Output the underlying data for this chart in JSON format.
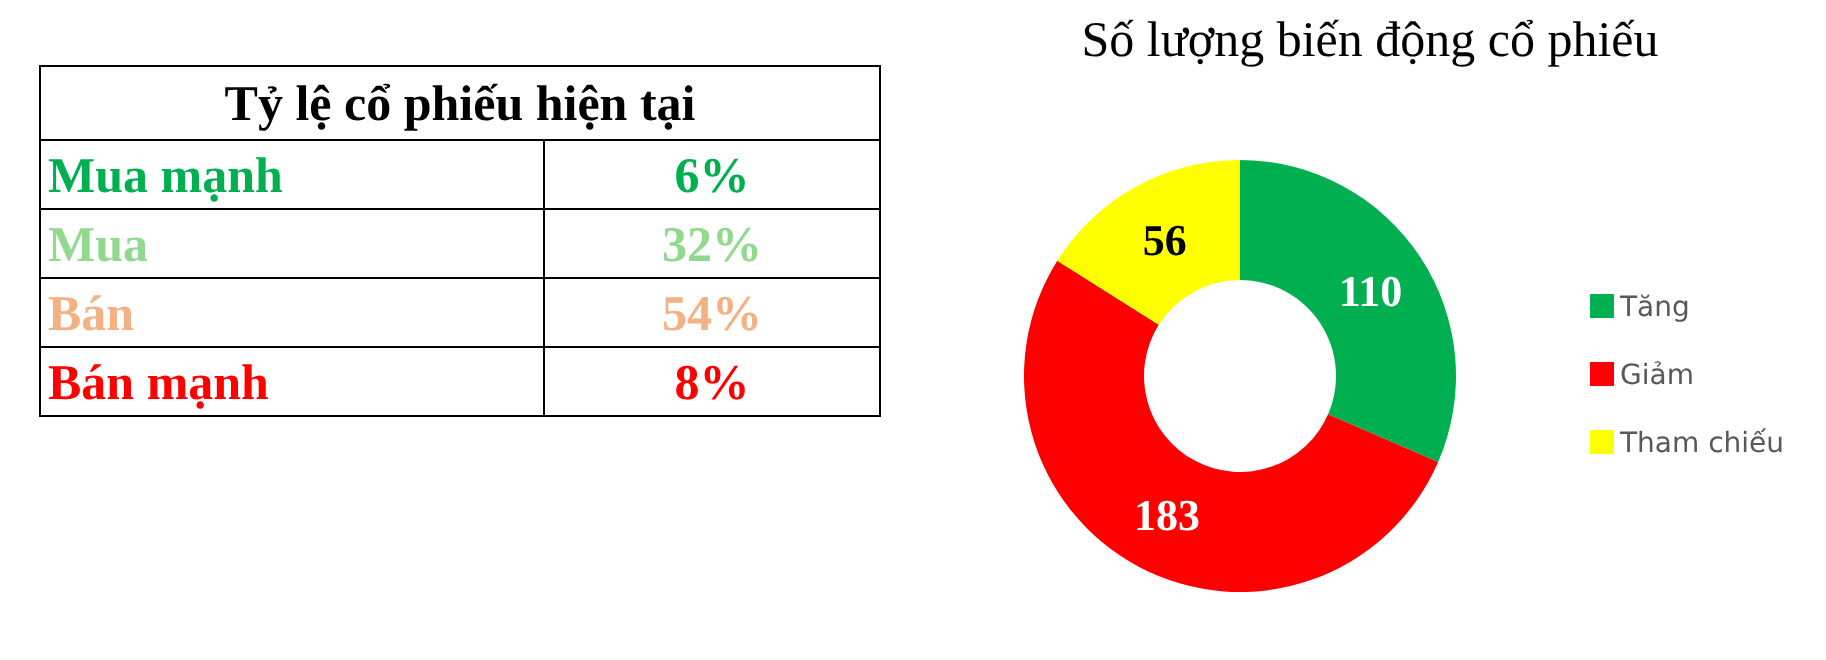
{
  "chart_data": [
    {
      "type": "other",
      "title": "Tỷ lệ cổ phiếu hiện tại",
      "categories": [
        "Mua mạnh",
        "Mua",
        "Bán",
        "Bán mạnh"
      ],
      "values": [
        6,
        32,
        54,
        8
      ],
      "value_labels": [
        "6%",
        "32%",
        "54%",
        "8%"
      ],
      "colors": [
        "#00b050",
        "#92d88f",
        "#f4b183",
        "#ff0000"
      ]
    },
    {
      "type": "donut",
      "title": "Số lượng biến động cổ phiếu",
      "categories": [
        "Tăng",
        "Giảm",
        "Tham chiếu"
      ],
      "values": [
        110,
        183,
        56
      ],
      "colors": [
        "#00b050",
        "#ff0000",
        "#ffff00"
      ],
      "data_labels": true,
      "legend": "right"
    }
  ]
}
